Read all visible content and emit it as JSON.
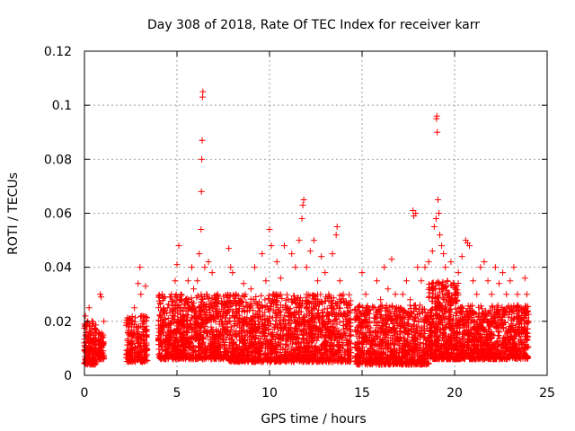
{
  "chart_data": {
    "type": "scatter",
    "title": "Day 308 of 2018, Rate Of TEC Index for receiver karr",
    "xlabel": "GPS time / hours",
    "ylabel": "ROTI / TECUs",
    "xlim": [
      0,
      25
    ],
    "ylim": [
      0,
      0.12
    ],
    "xticks": [
      0,
      5,
      10,
      15,
      20,
      25
    ],
    "xtick_labels": [
      "0",
      "5",
      "10",
      "15",
      "20",
      "25"
    ],
    "yticks": [
      0,
      0.02,
      0.04,
      0.06,
      0.08,
      0.1,
      0.12
    ],
    "ytick_labels": [
      "0",
      "0.02",
      "0.04",
      "0.06",
      "0.08",
      "0.1",
      "0.12"
    ],
    "grid": true,
    "marker": "+",
    "color": "#ff0000",
    "series": [
      {
        "name": "ROTI",
        "points": [
          [
            0.0,
            0.012
          ],
          [
            0.05,
            0.022
          ],
          [
            0.1,
            0.018
          ],
          [
            0.15,
            0.009
          ],
          [
            0.2,
            0.015
          ],
          [
            0.25,
            0.025
          ],
          [
            0.3,
            0.011
          ],
          [
            0.35,
            0.016
          ],
          [
            0.4,
            0.02
          ],
          [
            0.45,
            0.013
          ],
          [
            0.5,
            0.008
          ],
          [
            0.55,
            0.017
          ],
          [
            0.6,
            0.014
          ],
          [
            0.8,
            0.01
          ],
          [
            0.85,
            0.03
          ],
          [
            0.9,
            0.029
          ],
          [
            0.95,
            0.015
          ],
          [
            1.0,
            0.012
          ],
          [
            1.05,
            0.02
          ],
          [
            2.3,
            0.008
          ],
          [
            2.4,
            0.015
          ],
          [
            2.5,
            0.012
          ],
          [
            2.6,
            0.02
          ],
          [
            2.7,
            0.025
          ],
          [
            2.8,
            0.018
          ],
          [
            2.9,
            0.034
          ],
          [
            3.0,
            0.04
          ],
          [
            3.05,
            0.03
          ],
          [
            3.1,
            0.022
          ],
          [
            3.2,
            0.015
          ],
          [
            3.3,
            0.033
          ],
          [
            3.35,
            0.01
          ],
          [
            4.0,
            0.013
          ],
          [
            4.1,
            0.02
          ],
          [
            4.2,
            0.03
          ],
          [
            4.3,
            0.018
          ],
          [
            4.4,
            0.012
          ],
          [
            4.5,
            0.025
          ],
          [
            4.6,
            0.015
          ],
          [
            4.7,
            0.03
          ],
          [
            4.8,
            0.022
          ],
          [
            4.9,
            0.035
          ],
          [
            5.0,
            0.041
          ],
          [
            5.1,
            0.048
          ],
          [
            5.2,
            0.03
          ],
          [
            5.3,
            0.02
          ],
          [
            5.4,
            0.015
          ],
          [
            5.5,
            0.028
          ],
          [
            5.6,
            0.035
          ],
          [
            5.7,
            0.025
          ],
          [
            5.8,
            0.04
          ],
          [
            5.9,
            0.032
          ],
          [
            6.0,
            0.02
          ],
          [
            6.1,
            0.035
          ],
          [
            6.2,
            0.045
          ],
          [
            6.3,
            0.054
          ],
          [
            6.32,
            0.068
          ],
          [
            6.34,
            0.08
          ],
          [
            6.36,
            0.087
          ],
          [
            6.38,
            0.103
          ],
          [
            6.4,
            0.105
          ],
          [
            6.5,
            0.04
          ],
          [
            6.6,
            0.03
          ],
          [
            6.7,
            0.042
          ],
          [
            6.8,
            0.022
          ],
          [
            6.9,
            0.038
          ],
          [
            7.0,
            0.015
          ],
          [
            7.2,
            0.03
          ],
          [
            7.4,
            0.02
          ],
          [
            7.6,
            0.025
          ],
          [
            7.8,
            0.047
          ],
          [
            7.9,
            0.04
          ],
          [
            8.0,
            0.038
          ],
          [
            8.2,
            0.03
          ],
          [
            8.4,
            0.02
          ],
          [
            8.6,
            0.034
          ],
          [
            8.8,
            0.025
          ],
          [
            9.0,
            0.032
          ],
          [
            9.2,
            0.04
          ],
          [
            9.4,
            0.02
          ],
          [
            9.6,
            0.045
          ],
          [
            9.8,
            0.035
          ],
          [
            10.0,
            0.054
          ],
          [
            10.1,
            0.048
          ],
          [
            10.2,
            0.03
          ],
          [
            10.4,
            0.042
          ],
          [
            10.6,
            0.036
          ],
          [
            10.8,
            0.048
          ],
          [
            11.0,
            0.028
          ],
          [
            11.2,
            0.045
          ],
          [
            11.4,
            0.04
          ],
          [
            11.6,
            0.05
          ],
          [
            11.75,
            0.058
          ],
          [
            11.8,
            0.063
          ],
          [
            11.85,
            0.065
          ],
          [
            12.0,
            0.04
          ],
          [
            12.2,
            0.046
          ],
          [
            12.4,
            0.05
          ],
          [
            12.6,
            0.035
          ],
          [
            12.8,
            0.044
          ],
          [
            13.0,
            0.038
          ],
          [
            13.2,
            0.03
          ],
          [
            13.4,
            0.045
          ],
          [
            13.6,
            0.052
          ],
          [
            13.65,
            0.055
          ],
          [
            13.8,
            0.035
          ],
          [
            14.0,
            0.02
          ],
          [
            14.2,
            0.025
          ],
          [
            14.4,
            0.015
          ],
          [
            14.8,
            0.018
          ],
          [
            15.0,
            0.038
          ],
          [
            15.2,
            0.03
          ],
          [
            15.4,
            0.02
          ],
          [
            15.6,
            0.025
          ],
          [
            15.8,
            0.035
          ],
          [
            16.0,
            0.028
          ],
          [
            16.2,
            0.04
          ],
          [
            16.4,
            0.032
          ],
          [
            16.6,
            0.043
          ],
          [
            16.8,
            0.03
          ],
          [
            17.0,
            0.022
          ],
          [
            17.2,
            0.03
          ],
          [
            17.4,
            0.035
          ],
          [
            17.6,
            0.028
          ],
          [
            17.75,
            0.061
          ],
          [
            17.8,
            0.059
          ],
          [
            17.9,
            0.06
          ],
          [
            18.0,
            0.04
          ],
          [
            18.2,
            0.035
          ],
          [
            18.4,
            0.04
          ],
          [
            18.6,
            0.042
          ],
          [
            18.8,
            0.046
          ],
          [
            18.9,
            0.055
          ],
          [
            19.0,
            0.058
          ],
          [
            19.02,
            0.095
          ],
          [
            19.04,
            0.096
          ],
          [
            19.06,
            0.09
          ],
          [
            19.1,
            0.065
          ],
          [
            19.15,
            0.06
          ],
          [
            19.2,
            0.052
          ],
          [
            19.3,
            0.048
          ],
          [
            19.4,
            0.045
          ],
          [
            19.5,
            0.04
          ],
          [
            19.6,
            0.035
          ],
          [
            19.8,
            0.042
          ],
          [
            20.0,
            0.03
          ],
          [
            20.2,
            0.038
          ],
          [
            20.4,
            0.044
          ],
          [
            20.6,
            0.05
          ],
          [
            20.7,
            0.049
          ],
          [
            20.8,
            0.048
          ],
          [
            21.0,
            0.035
          ],
          [
            21.2,
            0.03
          ],
          [
            21.4,
            0.04
          ],
          [
            21.6,
            0.042
          ],
          [
            21.8,
            0.035
          ],
          [
            22.0,
            0.03
          ],
          [
            22.2,
            0.04
          ],
          [
            22.4,
            0.034
          ],
          [
            22.6,
            0.038
          ],
          [
            22.8,
            0.03
          ],
          [
            23.0,
            0.035
          ],
          [
            23.2,
            0.04
          ],
          [
            23.4,
            0.03
          ],
          [
            23.6,
            0.025
          ],
          [
            23.8,
            0.036
          ],
          [
            23.9,
            0.03
          ],
          [
            24.0,
            0.02
          ]
        ],
        "dense_bands": [
          {
            "x": [
              0.0,
              0.65
            ],
            "y": [
              0.004,
              0.02
            ],
            "n": 170
          },
          {
            "x": [
              0.75,
              1.05
            ],
            "y": [
              0.006,
              0.016
            ],
            "n": 70
          },
          {
            "x": [
              2.25,
              3.4
            ],
            "y": [
              0.005,
              0.022
            ],
            "n": 230
          },
          {
            "x": [
              4.0,
              7.8
            ],
            "y": [
              0.006,
              0.03
            ],
            "n": 900
          },
          {
            "x": [
              7.8,
              14.4
            ],
            "y": [
              0.005,
              0.03
            ],
            "n": 1500
          },
          {
            "x": [
              14.6,
              18.6
            ],
            "y": [
              0.004,
              0.026
            ],
            "n": 900
          },
          {
            "x": [
              18.6,
              20.2
            ],
            "y": [
              0.006,
              0.035
            ],
            "n": 500
          },
          {
            "x": [
              20.2,
              24.0
            ],
            "y": [
              0.006,
              0.026
            ],
            "n": 900
          }
        ]
      }
    ]
  }
}
